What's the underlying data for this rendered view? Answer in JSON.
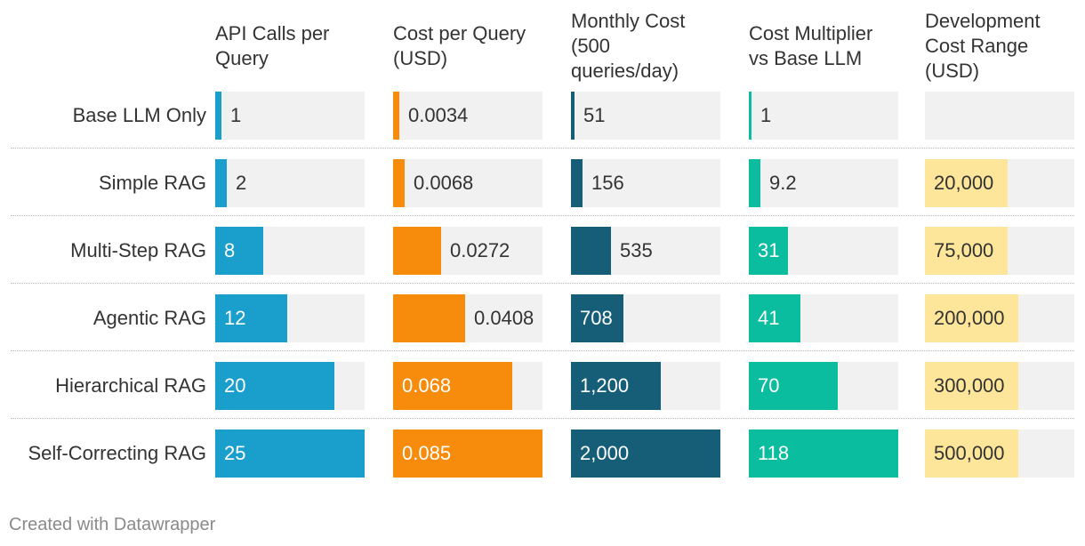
{
  "chart_data": {
    "type": "table",
    "title": "",
    "columns": [
      {
        "key": "api_calls",
        "header": "API Calls per\nQuery",
        "color": "#1a9ecc",
        "max": 25,
        "bar": true
      },
      {
        "key": "cost_per_query",
        "header": "Cost per Query\n(USD)",
        "color": "#f68b0c",
        "max": 0.085,
        "bar": true
      },
      {
        "key": "monthly_cost",
        "header": "Monthly Cost\n(500\nqueries/day)",
        "color": "#165e78",
        "max": 2000,
        "bar": true
      },
      {
        "key": "cost_multiplier",
        "header": "Cost Multiplier\nvs Base LLM",
        "color": "#0bbd9f",
        "max": 118,
        "bar": true
      },
      {
        "key": "dev_cost",
        "header": "Development\nCost Range\n(USD)",
        "color": "#fde59a",
        "bar": false
      }
    ],
    "rows": [
      {
        "label": "Base LLM Only",
        "values": [
          1,
          0.0034,
          51,
          1,
          null
        ],
        "display": [
          "1",
          "0.0034",
          "51",
          "1",
          ""
        ]
      },
      {
        "label": "Simple RAG",
        "values": [
          2,
          0.0068,
          156,
          9.2,
          20000
        ],
        "display": [
          "2",
          "0.0068",
          "156",
          "9.2",
          "20,000"
        ]
      },
      {
        "label": "Multi-Step RAG",
        "values": [
          8,
          0.0272,
          535,
          31,
          75000
        ],
        "display": [
          "8",
          "0.0272",
          "535",
          "31",
          "75,000"
        ]
      },
      {
        "label": "Agentic RAG",
        "values": [
          12,
          0.0408,
          708,
          41,
          200000
        ],
        "display": [
          "12",
          "0.0408",
          "708",
          "41",
          "200,000"
        ]
      },
      {
        "label": "Hierarchical RAG",
        "values": [
          20,
          0.068,
          1200,
          70,
          300000
        ],
        "display": [
          "20",
          "0.068",
          "1,200",
          "70",
          "300,000"
        ]
      },
      {
        "label": "Self-Correcting RAG",
        "values": [
          25,
          0.085,
          2000,
          118,
          500000
        ],
        "display": [
          "25",
          "0.085",
          "2,000",
          "118",
          "500,000"
        ]
      }
    ]
  },
  "footer": "Created with Datawrapper",
  "colors": {
    "cell_background": "#f1f1f1",
    "text_dark": "#333333",
    "text_light": "#ffffff",
    "footer_text": "#8a8a8a"
  }
}
